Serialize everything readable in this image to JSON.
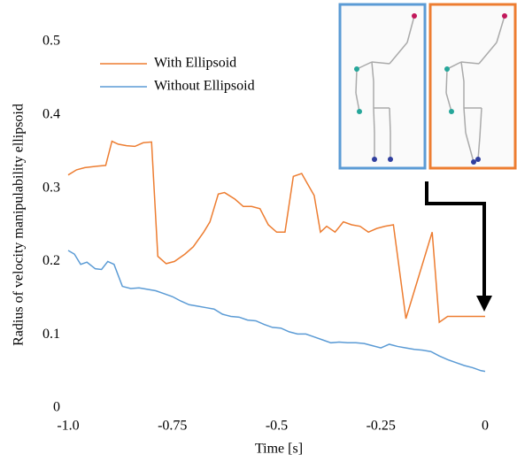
{
  "chart_data": {
    "type": "line",
    "xlabel": "Time [s]",
    "ylabel": "Radius of velocity manipulability ellipsoid",
    "xlim": [
      -1,
      0
    ],
    "ylim": [
      0,
      0.5
    ],
    "xticks": [
      {
        "value": -1,
        "label": "-1.0"
      },
      -0.75,
      -0.5,
      -0.25,
      0
    ],
    "yticks": [
      0,
      0.1,
      0.2,
      0.3,
      0.4,
      0.5
    ],
    "legend": "upper left",
    "series": [
      {
        "name": "With Ellipsoid",
        "color": "#ed7d31",
        "x": [
          -1.0,
          -0.98,
          -0.96,
          -0.93,
          -0.91,
          -0.895,
          -0.88,
          -0.86,
          -0.84,
          -0.82,
          -0.8,
          -0.785,
          -0.765,
          -0.745,
          -0.72,
          -0.7,
          -0.675,
          -0.66,
          -0.64,
          -0.625,
          -0.6,
          -0.58,
          -0.56,
          -0.54,
          -0.52,
          -0.5,
          -0.48,
          -0.46,
          -0.44,
          -0.425,
          -0.41,
          -0.395,
          -0.38,
          -0.36,
          -0.34,
          -0.32,
          -0.3,
          -0.28,
          -0.26,
          -0.24,
          -0.22,
          -0.19,
          -0.127,
          -0.11,
          -0.09,
          0
        ],
        "values": [
          0.318,
          0.325,
          0.328,
          0.33,
          0.331,
          0.364,
          0.36,
          0.358,
          0.357,
          0.362,
          0.363,
          0.207,
          0.197,
          0.2,
          0.21,
          0.22,
          0.24,
          0.254,
          0.292,
          0.294,
          0.285,
          0.275,
          0.275,
          0.272,
          0.25,
          0.24,
          0.24,
          0.316,
          0.32,
          0.305,
          0.29,
          0.24,
          0.248,
          0.24,
          0.254,
          0.25,
          0.248,
          0.24,
          0.245,
          0.248,
          0.25,
          0.122,
          0.24,
          0.117,
          0.125,
          0.125
        ]
      },
      {
        "name": "Without Ellipsoid",
        "color": "#5b9bd5",
        "x": [
          -1.0,
          -0.985,
          -0.97,
          -0.955,
          -0.935,
          -0.92,
          -0.905,
          -0.89,
          -0.87,
          -0.85,
          -0.83,
          -0.81,
          -0.79,
          -0.77,
          -0.75,
          -0.73,
          -0.71,
          -0.69,
          -0.67,
          -0.65,
          -0.63,
          -0.61,
          -0.59,
          -0.57,
          -0.55,
          -0.53,
          -0.51,
          -0.49,
          -0.47,
          -0.45,
          -0.43,
          -0.41,
          -0.39,
          -0.37,
          -0.35,
          -0.33,
          -0.31,
          -0.29,
          -0.27,
          -0.25,
          -0.23,
          -0.21,
          -0.19,
          -0.17,
          -0.15,
          -0.13,
          -0.11,
          -0.09,
          -0.07,
          -0.05,
          -0.03,
          -0.01,
          0
        ],
        "values": [
          0.215,
          0.21,
          0.196,
          0.199,
          0.19,
          0.189,
          0.2,
          0.196,
          0.166,
          0.163,
          0.164,
          0.162,
          0.16,
          0.156,
          0.152,
          0.146,
          0.141,
          0.139,
          0.137,
          0.135,
          0.128,
          0.125,
          0.124,
          0.12,
          0.119,
          0.114,
          0.11,
          0.109,
          0.104,
          0.101,
          0.101,
          0.097,
          0.093,
          0.089,
          0.09,
          0.089,
          0.089,
          0.088,
          0.085,
          0.082,
          0.087,
          0.084,
          0.082,
          0.08,
          0.079,
          0.077,
          0.071,
          0.066,
          0.062,
          0.058,
          0.055,
          0.051,
          0.05
        ]
      }
    ]
  }
}
